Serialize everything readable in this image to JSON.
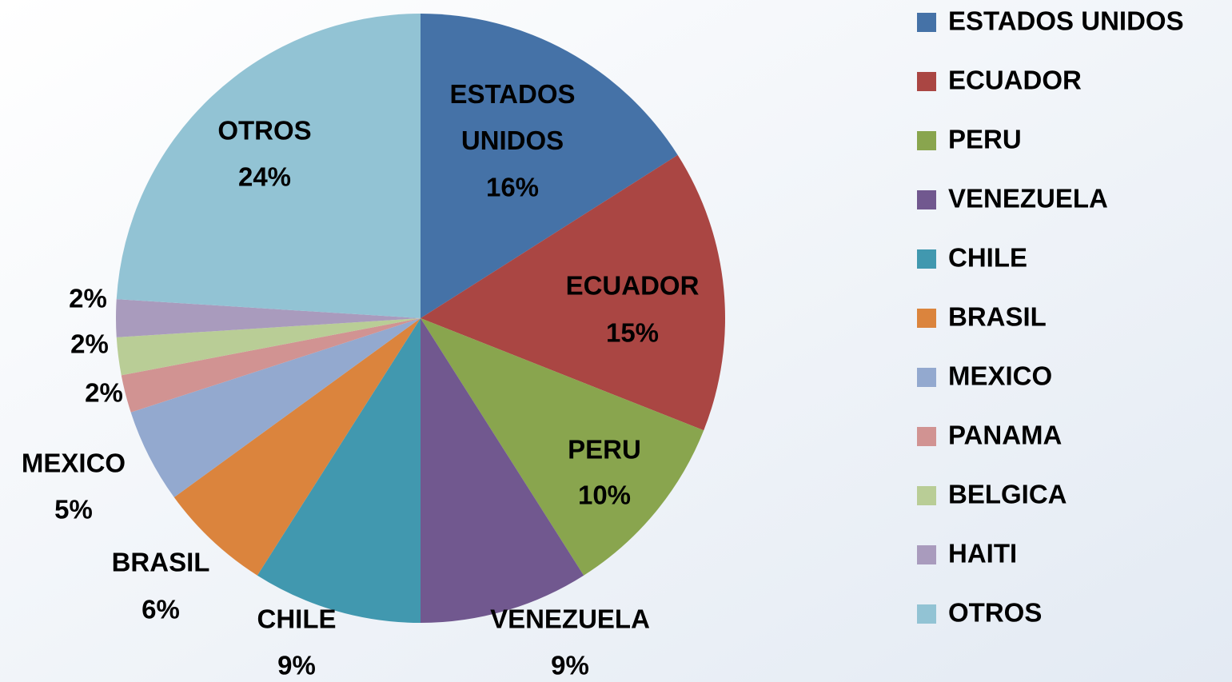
{
  "chart_data": {
    "type": "pie",
    "categories": [
      "ESTADOS UNIDOS",
      "ECUADOR",
      "PERU",
      "VENEZUELA",
      "CHILE",
      "BRASIL",
      "MEXICO",
      "PANAMA",
      "BELGICA",
      "HAITI",
      "OTROS"
    ],
    "values": [
      16,
      15,
      10,
      9,
      9,
      6,
      5,
      2,
      2,
      2,
      24
    ],
    "value_labels": [
      "16%",
      "15%",
      "10%",
      "9%",
      "9%",
      "6%",
      "5%",
      "2%",
      "2%",
      "2%",
      "24%"
    ],
    "colors": [
      "#4572a7",
      "#aa4643",
      "#89a54e",
      "#71588f",
      "#4198af",
      "#db843d",
      "#93a9cf",
      "#d19392",
      "#b9cd96",
      "#a99bbd",
      "#92c3d4"
    ],
    "legend": "right"
  }
}
